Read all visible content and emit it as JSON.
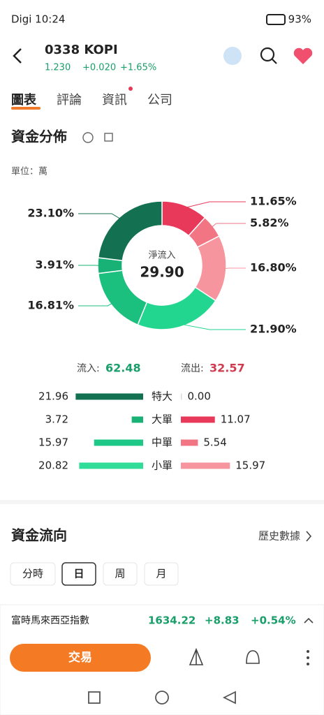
{
  "status_bar": {
    "time": "Digi 10:24",
    "battery": "93%"
  },
  "header": {
    "title": "0338  KOPI",
    "price": "1.230",
    "change": "+0.020",
    "change_pct": "+1.65%"
  },
  "tabs": [
    "圖表",
    "評論",
    "資訊",
    "公司"
  ],
  "section_title": "資金分佈",
  "unit": "單位：萬",
  "chart_data": {
    "type": "donut",
    "center_label": "淨流入",
    "center_value": 29.9,
    "center_value_label": "29.90",
    "values": [
      11.65,
      5.82,
      16.8,
      21.9,
      16.81,
      3.91,
      23.1
    ],
    "value_labels": [
      "11.65%",
      "5.82%",
      "16.80%",
      "21.90%",
      "16.81%",
      "3.91%",
      "23.10%"
    ],
    "colors": [
      "#e8395a",
      "#f27584",
      "#f7959f",
      "#22d690",
      "#1bbf7e",
      "#19b276",
      "#137050"
    ]
  },
  "flow": {
    "inflow_label": "流入:",
    "inflow_total": 62.48,
    "outflow_label": "流出:",
    "outflow_total": 32.57
  },
  "bars": {
    "type": "bar",
    "categories": [
      "特大",
      "大單",
      "中單",
      "小單"
    ],
    "series": [
      {
        "name": "流入",
        "values": [
          21.96,
          3.72,
          15.97,
          20.82
        ],
        "value_labels": [
          "21.96",
          "3.72",
          "15.97",
          "20.82"
        ],
        "colors": [
          "#137050",
          "#19b276",
          "#1ec886",
          "#2fdc98"
        ]
      },
      {
        "name": "流出",
        "values": [
          0,
          11.07,
          5.54,
          15.97
        ],
        "value_labels": [
          "0.00",
          "11.07",
          "5.54",
          "15.97"
        ],
        "colors": [
          "#dddddd",
          "#e8395a",
          "#f27584",
          "#f7959f"
        ]
      }
    ]
  },
  "flow_section": {
    "title": "資金流向",
    "history": "歷史數據",
    "periods": [
      "分時",
      "日",
      "周",
      "月"
    ]
  },
  "ticker": {
    "name": "富時馬來西亞指數",
    "price": "1634.22",
    "change": "+8.83",
    "change_pct": "+0.54%"
  },
  "trade_button": "交易"
}
